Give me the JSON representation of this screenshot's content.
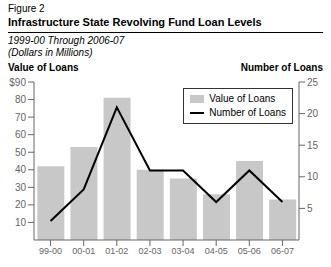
{
  "chart_data": {
    "type": "bar",
    "annotations": [
      "Figure 2"
    ],
    "title": "Infrastructure State Revolving Fund Loan Levels",
    "subtitle": [
      "1999-00 Through 2006-07",
      "(Dollars in Millions)"
    ],
    "ylabel": "Value of Loans",
    "y2label": "Number of Loans",
    "categories": [
      "99-00",
      "00-01",
      "01-02",
      "02-03",
      "03-04",
      "04-05",
      "05-06",
      "06-07"
    ],
    "series": [
      {
        "name": "Value of Loans",
        "type": "bar",
        "color": "#c8c8c8",
        "values": [
          42,
          53,
          81,
          40,
          35,
          26,
          45,
          23
        ]
      },
      {
        "name": "Number of Loans",
        "type": "line",
        "color": "#000000",
        "axis": "y2",
        "values": [
          3,
          8,
          21,
          11,
          11,
          6,
          11,
          6
        ]
      }
    ],
    "ylim": [
      0,
      90
    ],
    "yticks": [
      10,
      20,
      30,
      40,
      50,
      60,
      70,
      80,
      {
        "value": 90,
        "label": "$90"
      }
    ],
    "y2lim": [
      0,
      25
    ],
    "y2ticks": [
      5,
      10,
      15,
      20,
      25
    ],
    "legend": "upper right"
  }
}
